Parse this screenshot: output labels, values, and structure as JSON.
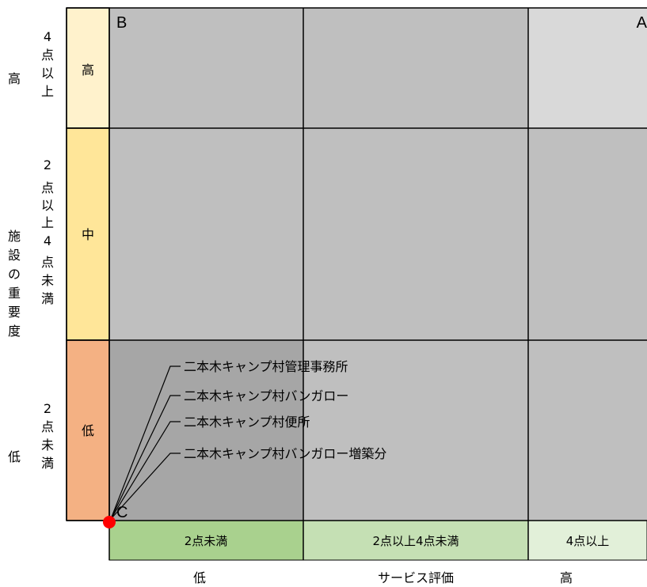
{
  "chart_data": {
    "type": "scatter",
    "x_axis": {
      "bands": [
        "2点未満",
        "2点以上4点未満",
        "4点以上"
      ],
      "title": "サービス評価",
      "low_label": "低",
      "high_label": "高",
      "band_colors": [
        "#a9d18e",
        "#c5e0b4",
        "#e2f0d9"
      ]
    },
    "y_axis": {
      "bands": [
        "低",
        "中",
        "高"
      ],
      "band_ranges": [
        "2点未満",
        "2点以上4点未満",
        "4点以上"
      ],
      "title": "施設の重要度",
      "low_label": "低",
      "high_label": "高",
      "band_colors": [
        "#f4b183",
        "#ffe699",
        "#fff2cc"
      ]
    },
    "quadrants": {
      "top_left": "B",
      "top_right": "A",
      "bottom_left": "C"
    },
    "points": [
      {
        "name": "二本木キャンプ村管理事務所",
        "x": 0,
        "y": 0
      },
      {
        "name": "二本木キャンプ村バンガロー",
        "x": 0,
        "y": 0
      },
      {
        "name": "二本木キャンプ村便所",
        "x": 0,
        "y": 0
      },
      {
        "name": "二本木キャンプ村バンガロー増築分",
        "x": 0,
        "y": 0
      }
    ],
    "point_color": "#ff0000"
  }
}
